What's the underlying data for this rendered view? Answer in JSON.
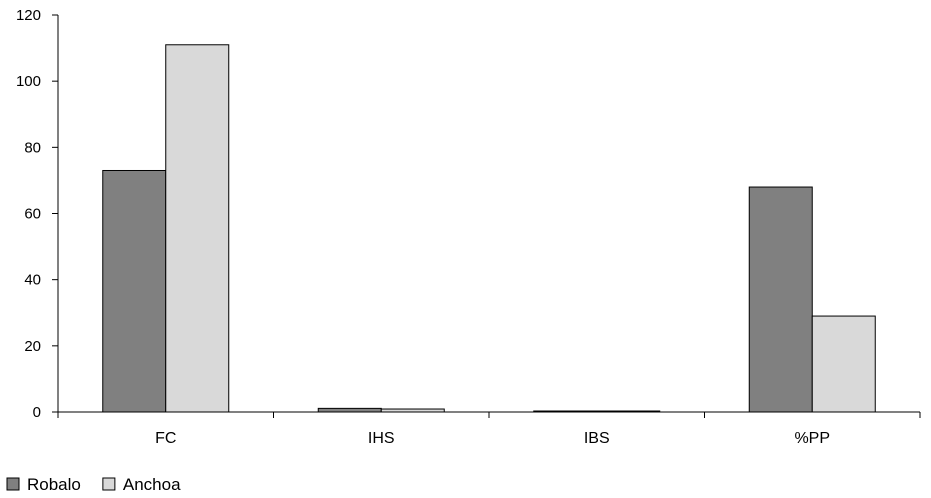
{
  "chart_data": {
    "type": "bar",
    "categories": [
      "FC",
      "IHS",
      "IBS",
      "%PP"
    ],
    "series": [
      {
        "name": "Robalo",
        "values": [
          73,
          1.1,
          0.3,
          68
        ],
        "color": "#808080"
      },
      {
        "name": "Anchoa",
        "values": [
          111,
          0.9,
          0.3,
          29
        ],
        "color": "#d9d9d9"
      }
    ],
    "yticks": [
      0,
      20,
      40,
      60,
      80,
      100,
      120
    ],
    "ylim": [
      0,
      120
    ],
    "grid": false,
    "legend_position": "bottom-left",
    "title": "",
    "xlabel": "",
    "ylabel": ""
  }
}
